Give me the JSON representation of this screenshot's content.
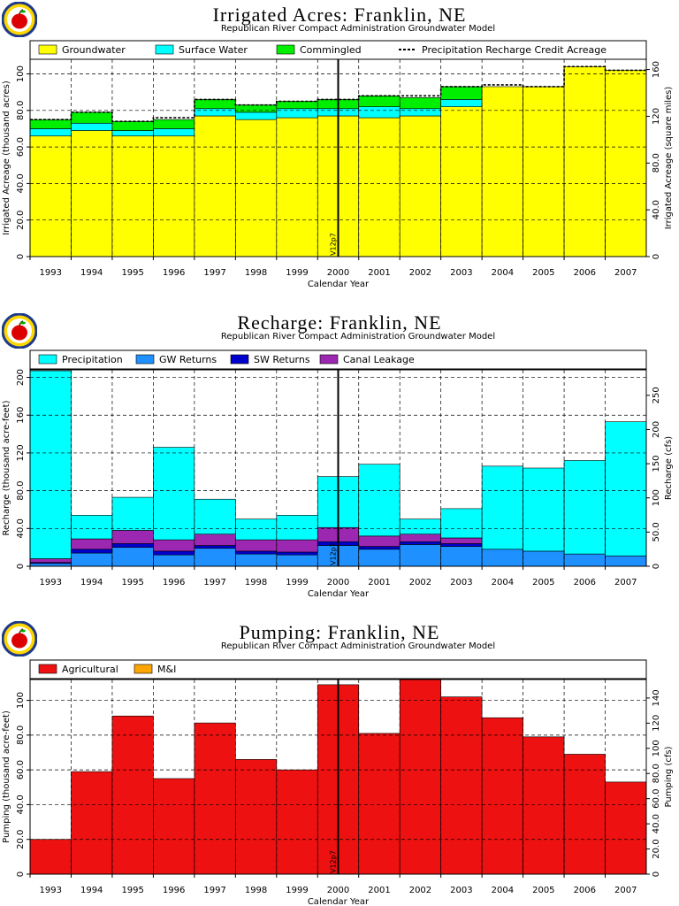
{
  "colors": {
    "groundwater": "#ffff00",
    "surface_water": "#00ffff",
    "commingled": "#00ee00",
    "gw_returns": "#1e90ff",
    "sw_returns": "#0000cd",
    "canal_leakage": "#9c27b0",
    "agricultural": "#ee1111",
    "m_and_i": "#ffa500"
  },
  "logo_icon": "apple-logo-icon",
  "chart_data": [
    {
      "type": "bar",
      "title": "Irrigated Acres: Franklin, NE",
      "subtitle": "Republican River Compact Administration Groundwater Model",
      "xlabel": "Calendar Year",
      "ylabel": "Irrigated Acreage (thousand acres)",
      "y2label": "Irrigated Acreage (square miles)",
      "ylim": [
        0,
        108
      ],
      "yticks": [
        "0",
        "20.0",
        "40.0",
        "60.0",
        "80.0",
        "100"
      ],
      "y2lim": [
        0,
        168.75
      ],
      "y2ticks": [
        "0",
        "40.0",
        "80.0",
        "120",
        "160"
      ],
      "categories": [
        "1993",
        "1994",
        "1995",
        "1996",
        "1997",
        "1998",
        "1999",
        "2000",
        "2001",
        "2002",
        "2003",
        "2004",
        "2005",
        "2006",
        "2007"
      ],
      "series": [
        {
          "name": "Groundwater",
          "values": [
            66,
            69,
            66,
            66,
            77,
            75,
            76,
            77,
            76,
            77,
            82,
            93,
            93,
            104,
            102
          ]
        },
        {
          "name": "Surface Water",
          "values": [
            4,
            4,
            3,
            4,
            4,
            4,
            5,
            4,
            6,
            4,
            4,
            0,
            0,
            0,
            0
          ]
        },
        {
          "name": "Commingled",
          "values": [
            5,
            6,
            5,
            5,
            5,
            4,
            4,
            5,
            6,
            6,
            7,
            0,
            0,
            0,
            0
          ]
        }
      ],
      "lines": [
        {
          "name": "Precipitation Recharge Credit Acreage",
          "values": [
            75,
            79,
            74,
            76,
            86,
            83,
            85,
            86,
            88,
            88,
            93,
            94,
            93,
            104,
            102
          ]
        }
      ],
      "vline_label": "V12p7",
      "legend": "top"
    },
    {
      "type": "bar",
      "title": "Recharge: Franklin, NE",
      "subtitle": "Republican River Compact Administration Groundwater Model",
      "xlabel": "Calendar Year",
      "ylabel": "Recharge (thousand acre-feet)",
      "y2label": "Recharge (cfs)",
      "ylim": [
        0,
        208
      ],
      "yticks": [
        "0",
        "40.0",
        "80.0",
        "120",
        "160",
        "200"
      ],
      "y2lim": [
        0,
        287.3
      ],
      "y2ticks": [
        "0",
        "50.0",
        "100",
        "150",
        "200",
        "250"
      ],
      "categories": [
        "1993",
        "1994",
        "1995",
        "1996",
        "1997",
        "1998",
        "1999",
        "2000",
        "2001",
        "2002",
        "2003",
        "2004",
        "2005",
        "2006",
        "2007"
      ],
      "series": [
        {
          "name": "GW Returns",
          "values": [
            3,
            14,
            20,
            12,
            19,
            13,
            12,
            22,
            18,
            23,
            21,
            18,
            16,
            13,
            11
          ]
        },
        {
          "name": "SW Returns",
          "values": [
            1,
            4,
            4,
            4,
            3,
            3,
            3,
            4,
            3,
            3,
            3,
            0,
            0,
            0,
            0
          ]
        },
        {
          "name": "Canal Leakage",
          "values": [
            4,
            11,
            14,
            12,
            12,
            12,
            13,
            15,
            11,
            8,
            6,
            0,
            0,
            0,
            0
          ]
        },
        {
          "name": "Precipitation",
          "values": [
            199,
            25,
            35,
            98,
            37,
            22,
            26,
            54,
            76,
            16,
            31,
            88,
            88,
            99,
            142
          ]
        }
      ],
      "vline_label": "V12p7",
      "legend": "top"
    },
    {
      "type": "bar",
      "title": "Pumping: Franklin, NE",
      "subtitle": "Republican River Compact Administration Groundwater Model",
      "xlabel": "Calendar Year",
      "ylabel": "Pumping (thousand acre-feet)",
      "y2label": "Pumping (cfs)",
      "ylim": [
        0,
        112
      ],
      "yticks": [
        "0",
        "20.0",
        "40.0",
        "60.0",
        "80.0",
        "100"
      ],
      "y2lim": [
        0,
        154.7
      ],
      "y2ticks": [
        "0",
        "20.0",
        "40.0",
        "60.0",
        "80.0",
        "100",
        "120",
        "140"
      ],
      "categories": [
        "1993",
        "1994",
        "1995",
        "1996",
        "1997",
        "1998",
        "1999",
        "2000",
        "2001",
        "2002",
        "2003",
        "2004",
        "2005",
        "2006",
        "2007"
      ],
      "series": [
        {
          "name": "Agricultural",
          "values": [
            20,
            59,
            91,
            55,
            87,
            66,
            60,
            109,
            81,
            112,
            102,
            90,
            79,
            69,
            53
          ]
        },
        {
          "name": "M&I",
          "values": [
            0,
            0,
            0,
            0,
            0,
            0,
            0,
            0,
            0,
            0,
            0,
            0,
            0,
            0,
            0
          ]
        }
      ],
      "vline_label": "V12p7",
      "legend": "top"
    }
  ]
}
